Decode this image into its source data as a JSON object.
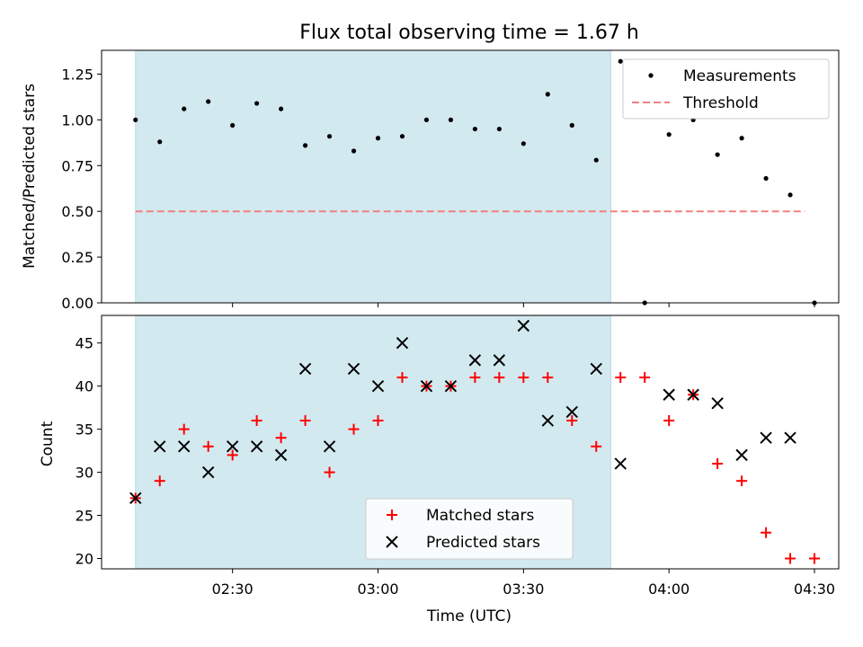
{
  "chart_data": [
    {
      "type": "scatter",
      "title": "Flux total observing time = 1.67 h",
      "xlabel": "",
      "ylabel": "Matched/Predicted stars",
      "xlim": [
        "02:03",
        "04:35"
      ],
      "ylim": [
        0,
        1.38
      ],
      "yticks": [
        0.0,
        0.25,
        0.5,
        0.75,
        1.0,
        1.25
      ],
      "ytick_labels": [
        "0.00",
        "0.25",
        "0.50",
        "0.75",
        "1.00",
        "1.25"
      ],
      "shaded_span": {
        "start": "02:10",
        "end": "03:48",
        "color": "#d3e9f0"
      },
      "legend_position": "upper right",
      "series": [
        {
          "name": "Measurements",
          "marker": "dot",
          "color": "#000000",
          "x": [
            "02:10",
            "02:15",
            "02:20",
            "02:25",
            "02:30",
            "02:35",
            "02:40",
            "02:45",
            "02:50",
            "02:55",
            "03:00",
            "03:05",
            "03:10",
            "03:15",
            "03:20",
            "03:25",
            "03:30",
            "03:35",
            "03:40",
            "03:45",
            "03:50",
            "03:55",
            "04:00",
            "04:05",
            "04:10",
            "04:15",
            "04:20",
            "04:25",
            "04:30"
          ],
          "y": [
            1.0,
            0.88,
            1.06,
            1.1,
            0.97,
            1.09,
            1.06,
            0.86,
            0.91,
            0.83,
            0.9,
            0.91,
            1.0,
            1.0,
            0.95,
            0.95,
            0.87,
            1.14,
            0.97,
            0.78,
            1.32,
            0.0,
            0.92,
            1.0,
            0.81,
            0.9,
            0.68,
            0.59,
            0.0
          ]
        },
        {
          "name": "Threshold",
          "style": "dashed",
          "color": "#f08080",
          "x": [
            "02:10",
            "04:28"
          ],
          "y": [
            0.5,
            0.5
          ]
        }
      ]
    },
    {
      "type": "scatter",
      "title": "",
      "xlabel": "Time (UTC)",
      "ylabel": "Count",
      "xlim": [
        "02:03",
        "04:35"
      ],
      "ylim": [
        18.8,
        48.2
      ],
      "yticks": [
        20,
        25,
        30,
        35,
        40,
        45
      ],
      "xticks": [
        "02:30",
        "03:00",
        "03:30",
        "04:00",
        "04:30"
      ],
      "shaded_span": {
        "start": "02:10",
        "end": "03:48",
        "color": "#d3e9f0"
      },
      "legend_position": "lower center",
      "series": [
        {
          "name": "Matched stars",
          "marker": "plus",
          "color": "#ff0000",
          "x": [
            "02:10",
            "02:15",
            "02:20",
            "02:25",
            "02:30",
            "02:35",
            "02:40",
            "02:45",
            "02:50",
            "02:55",
            "03:00",
            "03:05",
            "03:10",
            "03:15",
            "03:20",
            "03:25",
            "03:30",
            "03:35",
            "03:40",
            "03:45",
            "03:50",
            "03:55",
            "04:00",
            "04:05",
            "04:10",
            "04:15",
            "04:20",
            "04:25",
            "04:30"
          ],
          "y": [
            27,
            29,
            35,
            33,
            32,
            36,
            34,
            36,
            30,
            35,
            36,
            41,
            40,
            40,
            41,
            41,
            41,
            41,
            36,
            33,
            41,
            41,
            36,
            39,
            31,
            29,
            23,
            20,
            20
          ]
        },
        {
          "name": "Predicted stars",
          "marker": "x",
          "color": "#000000",
          "x": [
            "02:10",
            "02:15",
            "02:20",
            "02:25",
            "02:30",
            "02:35",
            "02:40",
            "02:45",
            "02:50",
            "02:55",
            "03:00",
            "03:05",
            "03:10",
            "03:15",
            "03:20",
            "03:25",
            "03:30",
            "03:35",
            "03:40",
            "03:45",
            "03:50",
            "04:00",
            "04:05",
            "04:10",
            "04:15",
            "04:20",
            "04:25"
          ],
          "y": [
            27,
            33,
            33,
            30,
            33,
            33,
            32,
            42,
            33,
            42,
            40,
            45,
            40,
            40,
            43,
            43,
            47,
            36,
            37,
            42,
            31,
            39,
            39,
            38,
            32,
            34,
            34
          ]
        }
      ]
    }
  ]
}
